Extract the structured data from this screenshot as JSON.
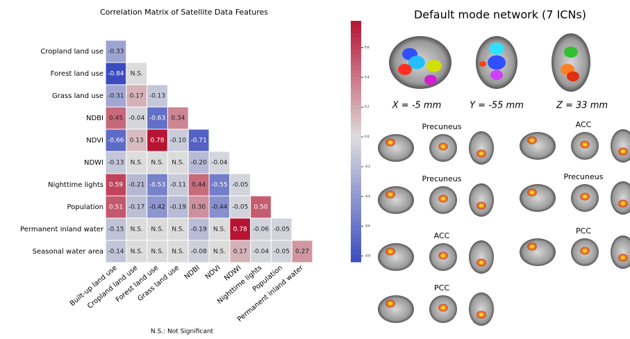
{
  "chart_data": {
    "type": "heatmap",
    "title": "Correlation Matrix of Satellite Data Features",
    "rows": [
      "Cropland land use",
      "Forest land use",
      "Grass land use",
      "NDBI",
      "NDVI",
      "NDWI",
      "Nighttime lights",
      "Population",
      "Permanent inland water",
      "Seasonal water area"
    ],
    "columns": [
      "Built-up land use",
      "Cropland land use",
      "Forest land use",
      "Grass land use",
      "NDBI",
      "NDVI",
      "NDWI",
      "Nighttime lights",
      "Population",
      "Permanent inland water"
    ],
    "values": [
      [
        -0.33
      ],
      [
        -0.84,
        null
      ],
      [
        -0.31,
        0.17,
        -0.13
      ],
      [
        0.45,
        -0.04,
        -0.63,
        0.34
      ],
      [
        -0.66,
        0.13,
        0.78,
        -0.1,
        -0.71
      ],
      [
        -0.13,
        null,
        null,
        null,
        -0.2,
        -0.04
      ],
      [
        0.59,
        -0.21,
        -0.53,
        -0.11,
        0.44,
        -0.55,
        -0.05
      ],
      [
        0.51,
        -0.17,
        -0.42,
        -0.19,
        0.3,
        -0.44,
        -0.05,
        0.5
      ],
      [
        -0.15,
        null,
        null,
        null,
        -0.19,
        null,
        0.78,
        -0.06,
        -0.05
      ],
      [
        -0.14,
        null,
        null,
        null,
        -0.08,
        null,
        0.17,
        -0.04,
        -0.05,
        0.27
      ]
    ],
    "value_labels": [
      [
        "-0.33"
      ],
      [
        "-0.84",
        "N.S."
      ],
      [
        "-0.31",
        "0.17",
        "-0.13"
      ],
      [
        "0.45",
        "-0.04",
        "-0.63",
        "0.34"
      ],
      [
        "-0.66",
        "0.13",
        "0.78",
        "-0.10",
        "-0.71"
      ],
      [
        "-0.13",
        "N.S.",
        "N.S.",
        "N.S.",
        "-0.20",
        "-0.04"
      ],
      [
        "0.59",
        "-0.21",
        "-0.53",
        "-0.11",
        "0.44",
        "-0.55",
        "-0.05"
      ],
      [
        "0.51",
        "-0.17",
        "-0.42",
        "-0.19",
        "0.30",
        "-0.44",
        "-0.05",
        "0.50"
      ],
      [
        "-0.15",
        "N.S.",
        "N.S.",
        "N.S.",
        "-0.19",
        "N.S.",
        "0.78",
        "-0.06",
        "-0.05"
      ],
      [
        "-0.14",
        "N.S.",
        "N.S.",
        "N.S.",
        "-0.08",
        "N.S.",
        "0.17",
        "-0.04",
        "-0.05",
        "0.27"
      ]
    ],
    "zlim": [
      -0.84,
      0.78
    ],
    "zticks": [
      {
        "value": 0.6,
        "label": "0.6"
      },
      {
        "value": 0.4,
        "label": "0.4"
      },
      {
        "value": 0.2,
        "label": "0.2"
      },
      {
        "value": 0,
        "label": "0.0"
      },
      {
        "value": -0.2,
        "label": "-0.2"
      },
      {
        "value": -0.4,
        "label": "-0.4"
      },
      {
        "value": -0.6,
        "label": "-0.6"
      },
      {
        "value": -0.8,
        "label": "-0.8"
      }
    ],
    "colormap": [
      "#3b4cc0",
      "#dddddd",
      "#b40426"
    ],
    "note": "N.S.: Not Significant"
  },
  "figure": {
    "title": "Default mode network (7 ICNs)",
    "coords": [
      "X = -5 mm",
      "Y = -55 mm",
      "Z = 33 mm"
    ],
    "regions": [
      "Precuneus",
      "Precuneus",
      "ACC",
      "PCC",
      "ACC",
      "Precuneus",
      "PCC"
    ]
  }
}
